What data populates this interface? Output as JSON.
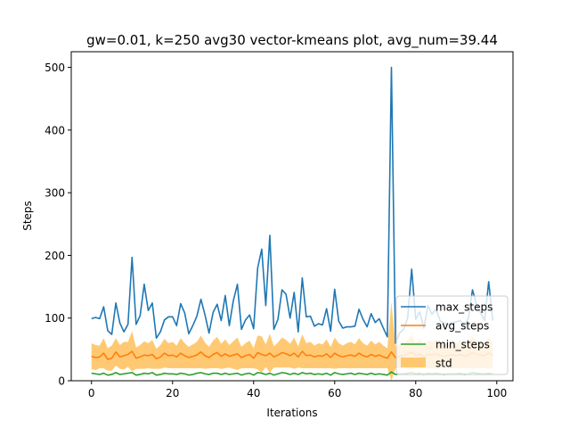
{
  "chart_data": {
    "type": "line",
    "title": "gw=0.01, k=250 avg30 vector-kmeans plot, avg_num=39.44",
    "xlabel": "Iterations",
    "ylabel": "Steps",
    "xlim": [
      -5,
      104
    ],
    "ylim": [
      0,
      525
    ],
    "xticks": [
      0,
      20,
      40,
      60,
      80,
      100
    ],
    "yticks": [
      0,
      100,
      200,
      300,
      400,
      500
    ],
    "grid": false,
    "legend_position": "lower right",
    "legend": [
      "max_steps",
      "avg_steps",
      "min_steps",
      "std"
    ],
    "x": [
      0,
      1,
      2,
      3,
      4,
      5,
      6,
      7,
      8,
      9,
      10,
      11,
      12,
      13,
      14,
      15,
      16,
      17,
      18,
      19,
      20,
      21,
      22,
      23,
      24,
      25,
      26,
      27,
      28,
      29,
      30,
      31,
      32,
      33,
      34,
      35,
      36,
      37,
      38,
      39,
      40,
      41,
      42,
      43,
      44,
      45,
      46,
      47,
      48,
      49,
      50,
      51,
      52,
      53,
      54,
      55,
      56,
      57,
      58,
      59,
      60,
      61,
      62,
      63,
      64,
      65,
      66,
      67,
      68,
      69,
      70,
      71,
      72,
      73,
      74,
      75,
      76,
      77,
      78,
      79,
      80,
      81,
      82,
      83,
      84,
      85,
      86,
      87,
      88,
      89,
      90,
      91,
      92,
      93,
      94,
      95,
      96,
      97,
      98,
      99
    ],
    "series": [
      {
        "name": "max_steps",
        "color": "#1f77b4",
        "values": [
          99,
          101,
          99,
          118,
          80,
          74,
          124,
          92,
          78,
          90,
          197,
          90,
          104,
          154,
          112,
          124,
          68,
          78,
          97,
          102,
          102,
          88,
          123,
          108,
          75,
          88,
          103,
          130,
          105,
          76,
          109,
          122,
          96,
          136,
          88,
          128,
          154,
          82,
          97,
          105,
          83,
          180,
          210,
          120,
          232,
          82,
          98,
          145,
          138,
          100,
          141,
          78,
          164,
          102,
          103,
          87,
          91,
          89,
          115,
          79,
          146,
          95,
          84,
          86,
          86,
          87,
          114,
          98,
          86,
          107,
          93,
          99,
          84,
          70,
          500,
          60,
          76,
          82,
          100,
          178,
          98,
          110,
          84,
          120,
          106,
          114,
          96,
          92,
          90,
          92,
          94,
          96,
          88,
          100,
          145,
          122,
          108,
          96,
          158,
          96
        ]
      },
      {
        "name": "avg_steps",
        "color": "#ff7f0e",
        "values": [
          39,
          37,
          38,
          44,
          34,
          36,
          46,
          38,
          40,
          42,
          47,
          36,
          38,
          41,
          40,
          42,
          35,
          38,
          44,
          40,
          41,
          38,
          44,
          40,
          37,
          39,
          41,
          46,
          40,
          37,
          42,
          45,
          39,
          43,
          39,
          41,
          43,
          37,
          40,
          42,
          36,
          45,
          42,
          40,
          44,
          38,
          41,
          45,
          43,
          40,
          44,
          38,
          47,
          40,
          41,
          38,
          40,
          39,
          43,
          37,
          44,
          40,
          38,
          40,
          41,
          39,
          44,
          40,
          38,
          42,
          39,
          41,
          38,
          36,
          46,
          37,
          39,
          40,
          42,
          46,
          40,
          43,
          38,
          42,
          41,
          43,
          40,
          39,
          40,
          41,
          40,
          42,
          39,
          41,
          45,
          42,
          41,
          40,
          44,
          40
        ]
      },
      {
        "name": "min_steps",
        "color": "#2ca02c",
        "values": [
          12,
          11,
          10,
          12,
          9,
          10,
          13,
          10,
          11,
          12,
          13,
          9,
          10,
          12,
          11,
          13,
          9,
          10,
          12,
          11,
          11,
          10,
          12,
          11,
          9,
          10,
          12,
          13,
          11,
          10,
          12,
          12,
          10,
          12,
          10,
          11,
          12,
          9,
          11,
          12,
          9,
          13,
          12,
          10,
          12,
          9,
          11,
          13,
          12,
          10,
          12,
          10,
          13,
          11,
          12,
          10,
          11,
          10,
          12,
          9,
          13,
          11,
          10,
          11,
          12,
          10,
          12,
          11,
          10,
          12,
          10,
          11,
          10,
          9,
          14,
          10,
          11,
          11,
          12,
          13,
          11,
          12,
          10,
          12,
          11,
          12,
          11,
          10,
          11,
          11,
          11,
          12,
          10,
          11,
          13,
          12,
          11,
          11,
          12,
          11
        ]
      },
      {
        "name": "std",
        "color": "#ffc05a",
        "values": [
          21,
          20,
          18,
          24,
          18,
          20,
          22,
          19,
          22,
          20,
          32,
          17,
          19,
          22,
          20,
          23,
          16,
          19,
          23,
          20,
          21,
          18,
          24,
          20,
          17,
          19,
          21,
          26,
          21,
          17,
          22,
          25,
          20,
          23,
          18,
          22,
          26,
          17,
          20,
          22,
          16,
          27,
          29,
          18,
          31,
          17,
          20,
          24,
          22,
          19,
          25,
          17,
          27,
          20,
          21,
          18,
          20,
          19,
          23,
          17,
          25,
          20,
          18,
          20,
          21,
          19,
          24,
          20,
          18,
          22,
          19,
          21,
          18,
          16,
          80,
          17,
          19,
          20,
          22,
          28,
          20,
          23,
          18,
          22,
          21,
          23,
          20,
          19,
          20,
          21,
          20,
          22,
          19,
          21,
          26,
          22,
          21,
          20,
          25,
          20
        ]
      }
    ]
  }
}
